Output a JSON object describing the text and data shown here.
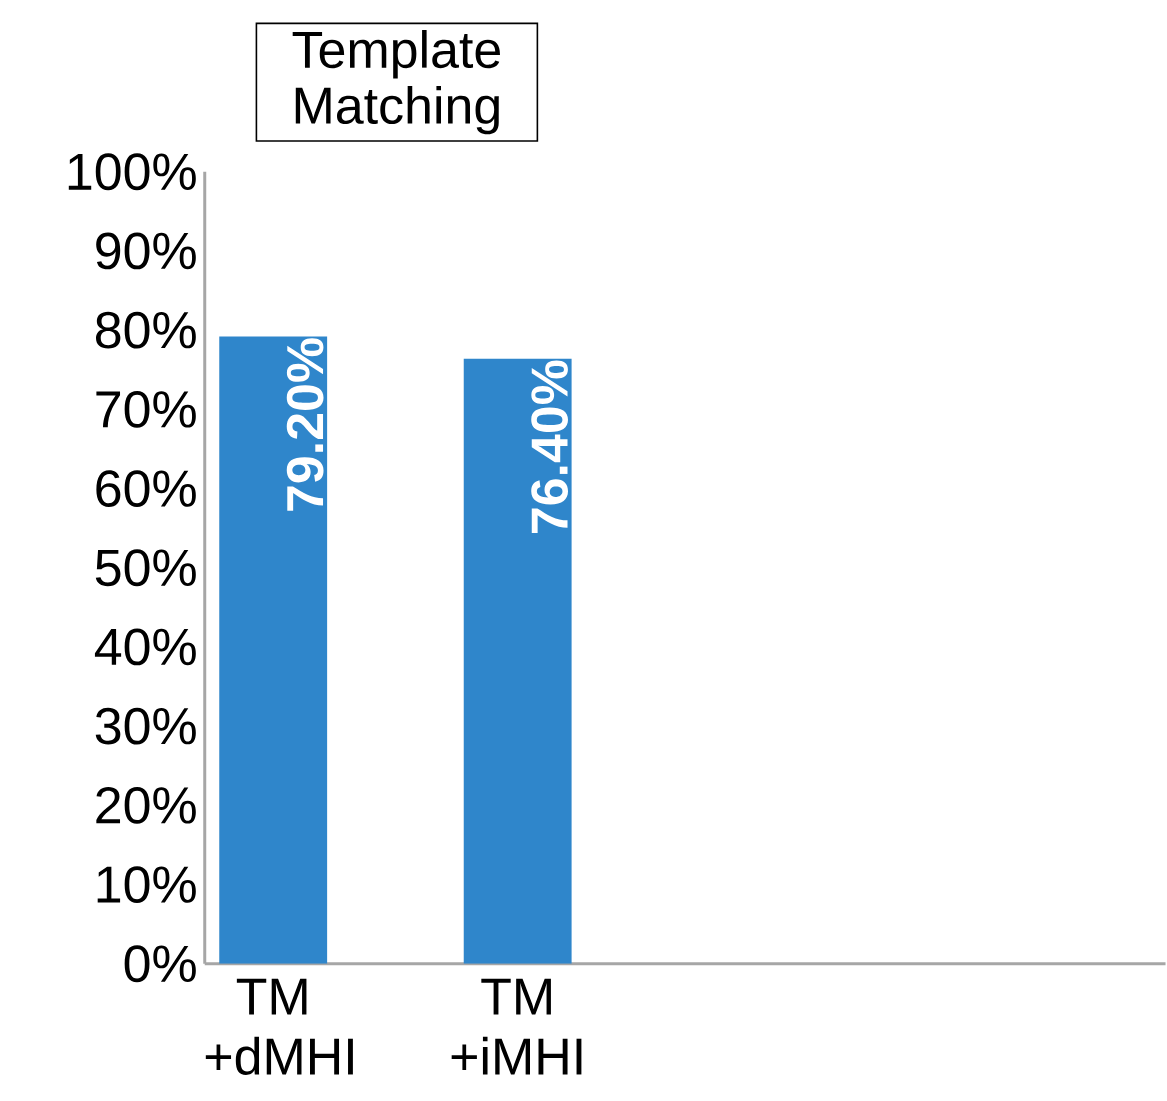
{
  "chart_data": {
    "type": "bar",
    "title": "Template Matching",
    "categories": [
      "TM +dMHI",
      "TM +iMHI"
    ],
    "values": [
      79.2,
      76.4
    ],
    "value_labels": [
      "79.20%",
      "76.40%"
    ],
    "color": "#2f86cb",
    "ylim": [
      0,
      100
    ],
    "yticks": [
      {
        "value": 0,
        "label": "0%"
      },
      {
        "value": 10,
        "label": "10%"
      },
      {
        "value": 20,
        "label": "20%"
      },
      {
        "value": 30,
        "label": "30%"
      },
      {
        "value": 40,
        "label": "40%"
      },
      {
        "value": 50,
        "label": "50%"
      },
      {
        "value": 60,
        "label": "60%"
      },
      {
        "value": 70,
        "label": "70%"
      },
      {
        "value": 80,
        "label": "80%"
      },
      {
        "value": 90,
        "label": "90%"
      },
      {
        "value": 100,
        "label": "100%"
      }
    ],
    "orientation": "vertical"
  }
}
